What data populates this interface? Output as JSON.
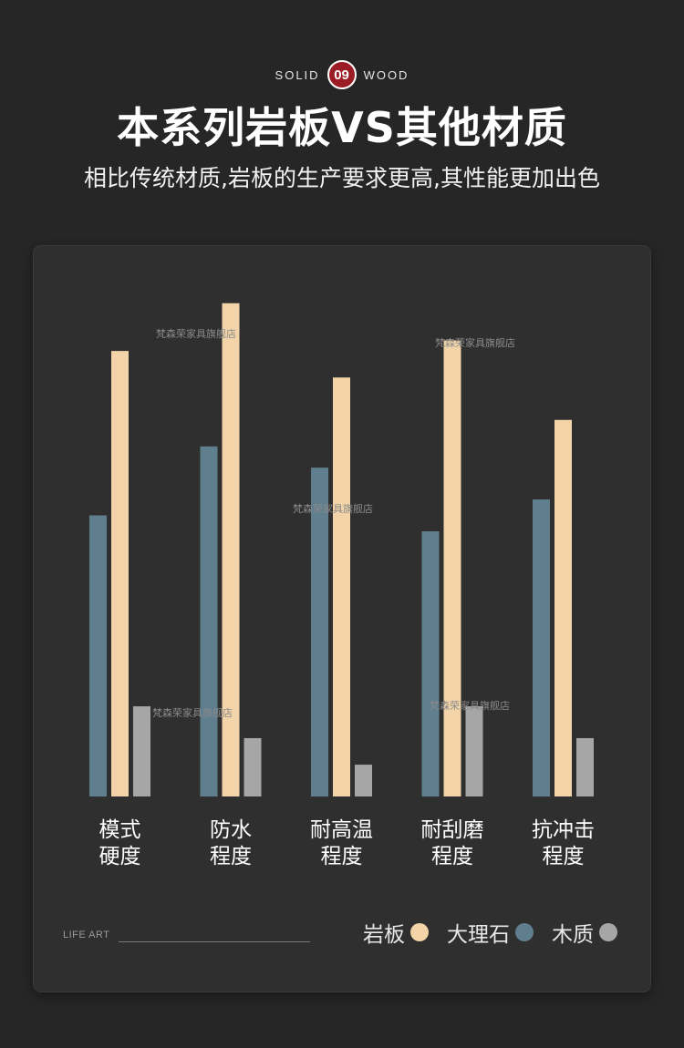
{
  "header": {
    "badge_left": "SOLID",
    "badge_number": "09",
    "badge_right": "WOOD",
    "title": "本系列岩板VS其他材质",
    "subtitle": "相比传统材质,岩板的生产要求更高,其性能更加出色"
  },
  "footer": {
    "brand": "LIFE ART"
  },
  "watermarks": [
    "梵森荣家具旗舰店",
    "梵森荣家具旗舰店",
    "梵森荣家具旗舰店",
    "梵森荣家具旗舰店",
    "梵森荣家具旗舰店"
  ],
  "colors": {
    "background": "#262626",
    "panel": "#2f2f2f",
    "stone_slab": "#f2d4a8",
    "marble": "#5f7f8e",
    "wood": "#a6a6a6",
    "badge": "#9b1c25"
  },
  "chart_data": {
    "type": "bar",
    "categories": [
      [
        "模式",
        "硬度"
      ],
      [
        "防水",
        "程度"
      ],
      [
        "耐高温",
        "程度"
      ],
      [
        "耐刮磨",
        "程度"
      ],
      [
        "抗冲击",
        "程度"
      ]
    ],
    "series": [
      {
        "name": "大理石",
        "color": "#5f7f8e",
        "values": [
          53,
          66,
          62,
          50,
          56
        ]
      },
      {
        "name": "岩板",
        "color": "#f2d4a8",
        "values": [
          84,
          93,
          79,
          86,
          71
        ]
      },
      {
        "name": "木质",
        "color": "#a6a6a6",
        "values": [
          17,
          11,
          6,
          17,
          11
        ]
      }
    ],
    "legend_order": [
      1,
      0,
      2
    ],
    "ylim": [
      0,
      100
    ],
    "grid": false,
    "legend_position": "bottom-right"
  }
}
